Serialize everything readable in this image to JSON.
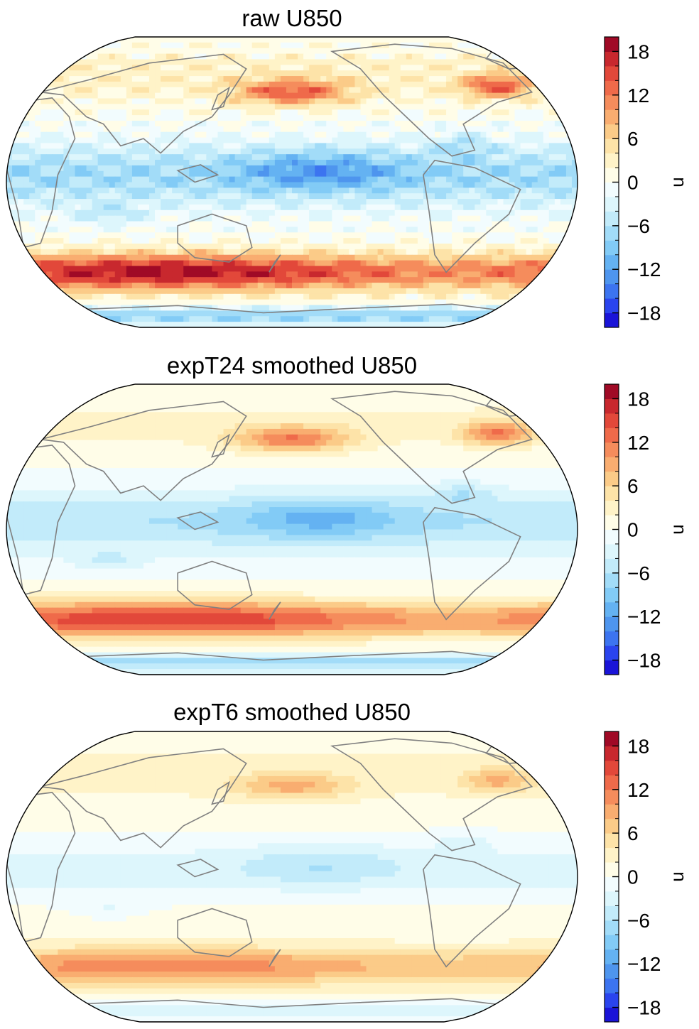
{
  "panels": [
    {
      "title": "raw U850",
      "variant": "raw"
    },
    {
      "title": "expT24 smoothed U850",
      "variant": "t24"
    },
    {
      "title": "expT6 smoothed U850",
      "variant": "t6"
    }
  ],
  "colorbar": {
    "label": "u",
    "ticks": [
      "18",
      "12",
      "6",
      "0",
      "−6",
      "−12",
      "−18"
    ],
    "tick_values": [
      18,
      12,
      6,
      0,
      -6,
      -12,
      -18
    ],
    "range": [
      -20,
      20
    ],
    "level_step": 2,
    "colors": [
      "#1a14d8",
      "#2a44ee",
      "#3c74f0",
      "#4e95ee",
      "#64b2f2",
      "#82cbf6",
      "#a2dcf8",
      "#c2ebfa",
      "#ddf6fc",
      "#f2fcfe",
      "#fffde8",
      "#fff3c8",
      "#fde3a8",
      "#fbcb88",
      "#f9ad70",
      "#f58c5c",
      "#ef6a4a",
      "#e2483a",
      "#c8282e",
      "#a00a26"
    ]
  },
  "map": {
    "projection": "Robinson",
    "central_longitude": 180,
    "coastline_color": "#808080"
  }
}
